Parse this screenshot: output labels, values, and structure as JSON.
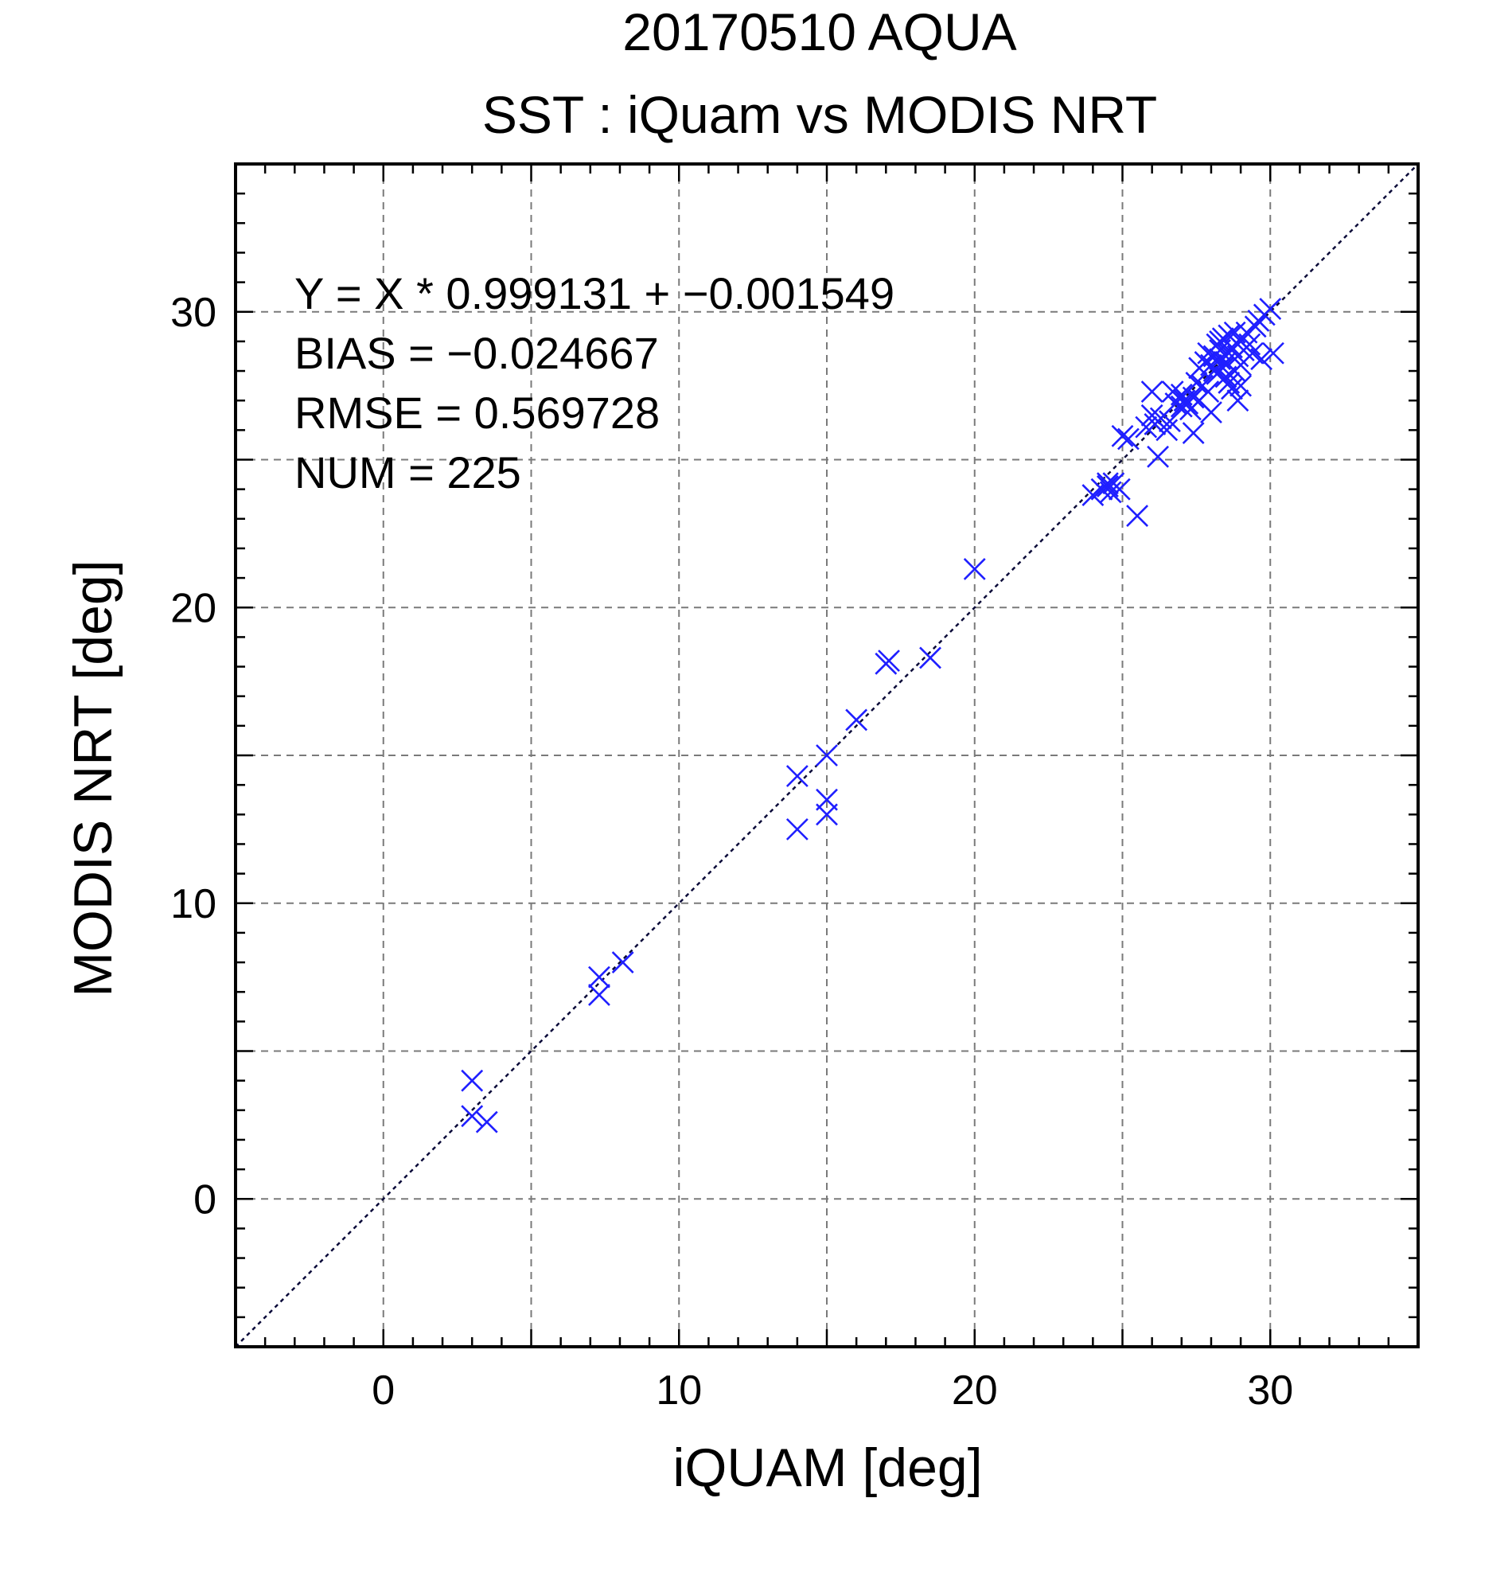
{
  "chart_data": {
    "type": "scatter",
    "title": "20170510 AQUA",
    "subtitle": "SST : iQuam vs MODIS NRT",
    "xlabel": "iQUAM [deg]",
    "ylabel": "MODIS NRT [deg]",
    "xlim": [
      -5,
      35
    ],
    "ylim": [
      -5,
      35
    ],
    "xticks": [
      0,
      10,
      20,
      30
    ],
    "yticks": [
      0,
      10,
      20,
      30
    ],
    "grid_step": 5,
    "minor_tick_step": 1,
    "grid": true,
    "marker": "x",
    "marker_color": "#1f1fff",
    "reference_line": {
      "slope": 1,
      "intercept": 0,
      "style": "dotted",
      "color": "#0b0b3a"
    },
    "stats": {
      "fit": "Y = X * 0.999131 + −0.001549",
      "bias": "BIAS = −0.024667",
      "rmse": "RMSE = 0.569728",
      "num": "NUM = 225"
    },
    "points": [
      [
        3.0,
        4.0
      ],
      [
        3.0,
        2.8
      ],
      [
        3.5,
        2.6
      ],
      [
        7.3,
        7.5
      ],
      [
        7.3,
        6.9
      ],
      [
        8.1,
        8.0
      ],
      [
        14.0,
        14.3
      ],
      [
        14.0,
        12.5
      ],
      [
        15.0,
        15.0
      ],
      [
        15.0,
        13.5
      ],
      [
        15.0,
        13.0
      ],
      [
        16.0,
        16.2
      ],
      [
        17.0,
        18.1
      ],
      [
        17.1,
        18.2
      ],
      [
        18.5,
        18.3
      ],
      [
        20.0,
        21.3
      ],
      [
        24.0,
        23.8
      ],
      [
        24.3,
        24.0
      ],
      [
        24.5,
        24.2
      ],
      [
        24.5,
        24.1
      ],
      [
        24.6,
        23.9
      ],
      [
        24.7,
        24.2
      ],
      [
        24.9,
        24.0
      ],
      [
        25.0,
        25.8
      ],
      [
        25.2,
        25.7
      ],
      [
        25.5,
        23.1
      ],
      [
        25.8,
        26.1
      ],
      [
        26.0,
        26.5
      ],
      [
        26.0,
        27.3
      ],
      [
        26.1,
        26.2
      ],
      [
        26.2,
        25.1
      ],
      [
        26.3,
        26.4
      ],
      [
        26.5,
        26.0
      ],
      [
        26.6,
        26.3
      ],
      [
        26.8,
        26.9
      ],
      [
        27.0,
        26.8
      ],
      [
        27.0,
        27.2
      ],
      [
        27.1,
        27.0
      ],
      [
        27.2,
        26.9
      ],
      [
        27.3,
        26.7
      ],
      [
        27.4,
        27.1
      ],
      [
        27.4,
        25.9
      ],
      [
        27.5,
        27.6
      ],
      [
        27.6,
        28.1
      ],
      [
        27.7,
        27.5
      ],
      [
        27.8,
        28.3
      ],
      [
        27.9,
        28.6
      ],
      [
        28.0,
        28.2
      ],
      [
        28.0,
        26.6
      ],
      [
        28.1,
        28.5
      ],
      [
        28.1,
        28.0
      ],
      [
        28.2,
        28.9
      ],
      [
        28.2,
        27.9
      ],
      [
        28.3,
        28.4
      ],
      [
        28.3,
        28.7
      ],
      [
        28.4,
        28.1
      ],
      [
        28.4,
        29.1
      ],
      [
        28.5,
        28.3
      ],
      [
        28.5,
        27.8
      ],
      [
        28.6,
        28.6
      ],
      [
        28.6,
        29.2
      ],
      [
        28.7,
        27.4
      ],
      [
        28.7,
        28.8
      ],
      [
        28.8,
        29.3
      ],
      [
        28.8,
        28.0
      ],
      [
        28.9,
        28.5
      ],
      [
        28.9,
        27.0
      ],
      [
        29.0,
        29.0
      ],
      [
        29.0,
        27.5
      ],
      [
        29.1,
        28.7
      ],
      [
        29.2,
        29.3
      ],
      [
        29.3,
        28.9
      ],
      [
        29.4,
        28.6
      ],
      [
        29.5,
        29.5
      ],
      [
        29.6,
        29.7
      ],
      [
        29.7,
        28.4
      ],
      [
        29.8,
        29.9
      ],
      [
        30.0,
        30.1
      ],
      [
        30.1,
        28.6
      ],
      [
        27.9,
        27.3
      ],
      [
        28.6,
        27.6
      ],
      [
        29.0,
        28.2
      ],
      [
        28.3,
        29.0
      ],
      [
        27.6,
        27.0
      ],
      [
        26.7,
        27.3
      ]
    ]
  }
}
